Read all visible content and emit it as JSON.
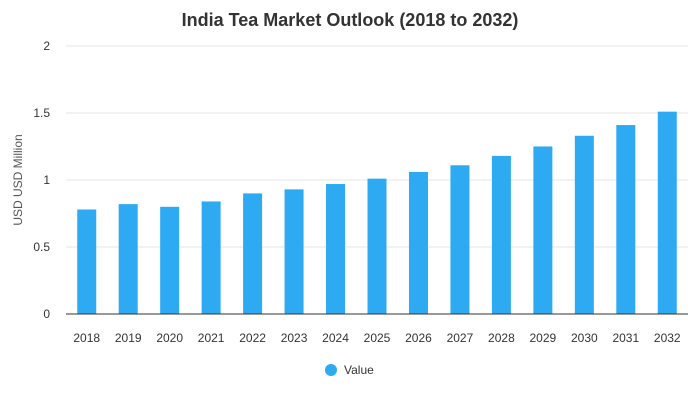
{
  "chart_data": {
    "type": "bar",
    "title": "India Tea Market Outlook (2018 to 2032)",
    "xlabel": "",
    "ylabel": "USD USD Million",
    "categories": [
      "2018",
      "2019",
      "2020",
      "2021",
      "2022",
      "2023",
      "2024",
      "2025",
      "2026",
      "2027",
      "2028",
      "2029",
      "2030",
      "2031",
      "2032"
    ],
    "series": [
      {
        "name": "Value",
        "color": "#2eaaf2",
        "values": [
          0.78,
          0.82,
          0.8,
          0.84,
          0.9,
          0.93,
          0.97,
          1.01,
          1.06,
          1.11,
          1.18,
          1.25,
          1.33,
          1.41,
          1.51
        ]
      }
    ],
    "ylim": [
      0,
      2
    ],
    "yticks": [
      "0",
      "0.5",
      "1",
      "1.5",
      "2"
    ],
    "grid": true,
    "legend_position": "bottom-center"
  }
}
